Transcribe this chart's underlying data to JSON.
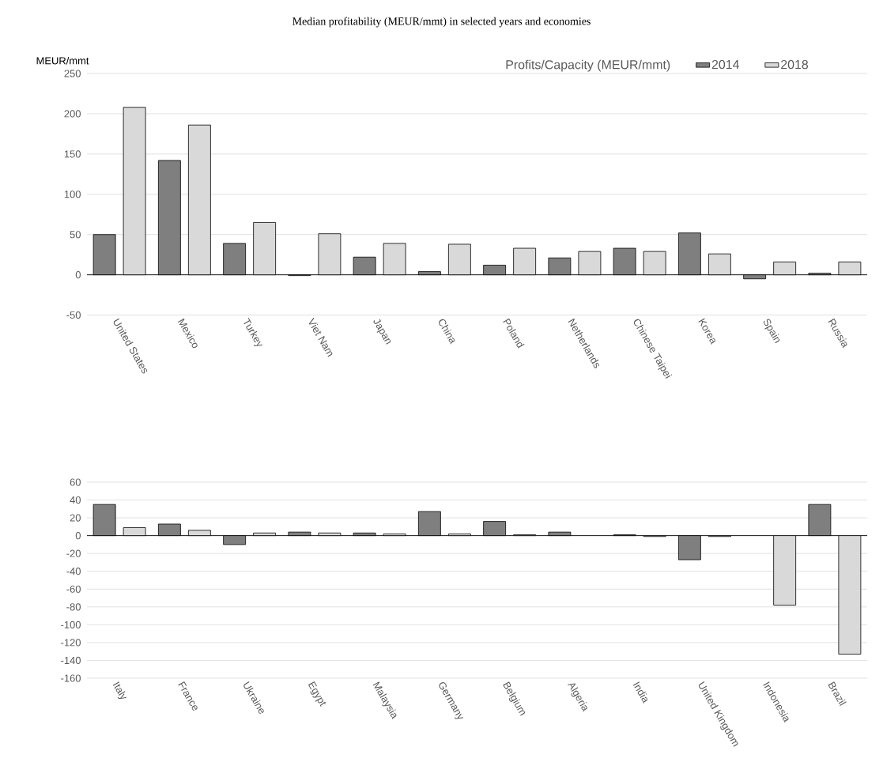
{
  "chart_data": [
    {
      "type": "bar",
      "title": "Median profitability (MEUR/mmt) in selected years and economies",
      "ylabel": "MEUR/mmt",
      "legend_title": "Profits/Capacity (MEUR/mmt)",
      "categories": [
        "United States",
        "Mexico",
        "Turkey",
        "Viet Nam",
        "Japan",
        "China",
        "Poland",
        "Netherlands",
        "Chinese Taipei",
        "Korea",
        "Spain",
        "Russia"
      ],
      "series": [
        {
          "name": "2014",
          "color": "#7f7f7f",
          "values": [
            50,
            142,
            39,
            -1,
            22,
            4,
            12,
            21,
            33,
            52,
            -5,
            2
          ]
        },
        {
          "name": "2018",
          "color": "#d9d9d9",
          "values": [
            208,
            186,
            65,
            51,
            39,
            38,
            33,
            29,
            29,
            26,
            16,
            16
          ]
        }
      ],
      "ylim": [
        -50,
        250
      ],
      "yticks": [
        -50,
        0,
        50,
        100,
        150,
        200,
        250
      ],
      "grid": "y",
      "legend": "top right"
    },
    {
      "type": "bar",
      "categories": [
        "Italy",
        "France",
        "Ukraine",
        "Egypt",
        "Malaysia",
        "Germany",
        "Belgium",
        "Algeria",
        "India",
        "United Kingdom",
        "Indonesia",
        "Brazil"
      ],
      "series": [
        {
          "color": "#7f7f7f",
          "values": [
            35,
            13,
            -10,
            4,
            3,
            27,
            16,
            4,
            1,
            -27,
            null,
            35
          ]
        },
        {
          "color": "#d9d9d9",
          "values": [
            9,
            6,
            3,
            3,
            2,
            2,
            1,
            null,
            -1,
            -1,
            -78,
            -133
          ]
        }
      ],
      "ylim": [
        -160,
        60
      ],
      "yticks": [
        -160,
        -140,
        -120,
        -100,
        -80,
        -60,
        -40,
        -20,
        0,
        20,
        40,
        60
      ],
      "grid": "y"
    }
  ]
}
